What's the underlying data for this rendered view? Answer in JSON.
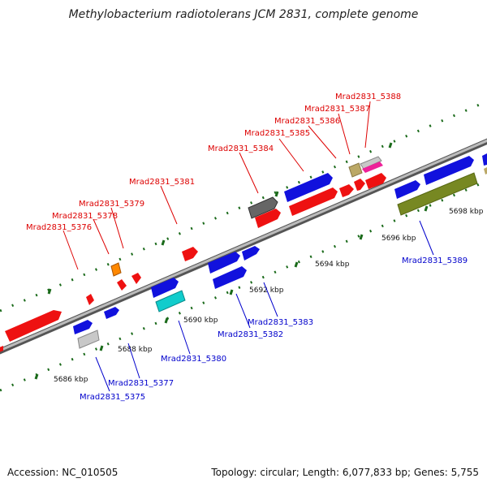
{
  "title": "Methylobacterium radiotolerans JCM 2831, complete genome",
  "footer": {
    "accession": "Accession: NC_010505",
    "summary": "Topology: circular; Length: 6,077,833 bp; Genes: 5,755"
  },
  "colors": {
    "red": "#ee1111",
    "blue": "#1111dd",
    "gray": "#666666",
    "light_gray": "#bbbbbb",
    "cyan": "#11cccc",
    "orange": "#ff8800",
    "tan": "#bba866",
    "pink": "#ee2299",
    "olive": "#778822",
    "top_tick": "#116611",
    "bottom_tick": "#116611",
    "backbone": "#888888"
  },
  "ticks": [
    {
      "label": "5686 kbp"
    },
    {
      "label": "5688 kbp"
    },
    {
      "label": "5690 kbp"
    },
    {
      "label": "5692 kbp"
    },
    {
      "label": "5694 kbp"
    },
    {
      "label": "5696 kbp"
    },
    {
      "label": "5698 kbp"
    }
  ],
  "top_labels": [
    {
      "id": "Mrad2831_5376"
    },
    {
      "id": "Mrad2831_5378"
    },
    {
      "id": "Mrad2831_5379"
    },
    {
      "id": "Mrad2831_5381"
    },
    {
      "id": "Mrad2831_5384"
    },
    {
      "id": "Mrad2831_5385"
    },
    {
      "id": "Mrad2831_5386"
    },
    {
      "id": "Mrad2831_5387"
    },
    {
      "id": "Mrad2831_5388"
    }
  ],
  "bottom_labels": [
    {
      "id": "Mrad2831_5375"
    },
    {
      "id": "Mrad2831_5377"
    },
    {
      "id": "Mrad2831_5380"
    },
    {
      "id": "Mrad2831_5382"
    },
    {
      "id": "Mrad2831_5383"
    },
    {
      "id": "Mrad2831_5389"
    }
  ]
}
